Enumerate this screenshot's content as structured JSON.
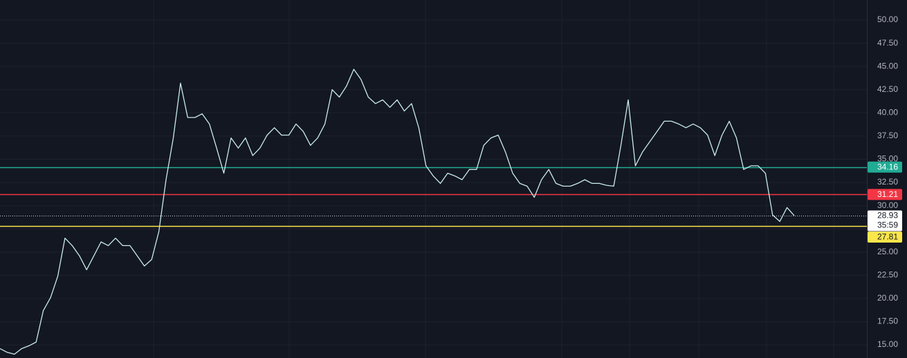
{
  "chart_data": {
    "type": "line",
    "color": "#c9ecea",
    "values": [
      14.6,
      14.2,
      14.0,
      14.6,
      14.9,
      15.3,
      18.7,
      20.1,
      22.4,
      26.5,
      25.7,
      24.6,
      23.1,
      24.6,
      26.1,
      25.7,
      26.5,
      25.7,
      25.7,
      24.6,
      23.5,
      24.2,
      27.2,
      32.8,
      37.3,
      43.2,
      39.5,
      39.5,
      39.9,
      38.8,
      36.2,
      33.5,
      37.3,
      36.2,
      37.3,
      35.4,
      36.2,
      37.6,
      38.4,
      37.6,
      37.6,
      38.8,
      38.0,
      36.5,
      37.3,
      38.8,
      42.5,
      41.7,
      42.9,
      44.7,
      43.6,
      41.7,
      41.0,
      41.4,
      40.6,
      41.4,
      40.2,
      41.0,
      38.4,
      34.3,
      33.2,
      32.4,
      33.5,
      33.2,
      32.8,
      33.9,
      33.9,
      36.5,
      37.3,
      37.6,
      35.8,
      33.5,
      32.4,
      32.1,
      30.9,
      32.8,
      33.9,
      32.4,
      32.1,
      32.1,
      32.4,
      32.8,
      32.4,
      32.4,
      32.2,
      32.1,
      36.5,
      41.4,
      34.3,
      35.8,
      36.9,
      38.0,
      39.1,
      39.1,
      38.8,
      38.4,
      38.8,
      38.4,
      37.6,
      35.4,
      37.6,
      39.1,
      37.3,
      33.9,
      34.3,
      34.3,
      33.5,
      29.0,
      28.3,
      29.8,
      28.93
    ],
    "ylim": [
      13.59,
      52.16
    ],
    "yticks": [
      {
        "value": 15,
        "label": "15.00"
      },
      {
        "value": 17.5,
        "label": "17.50"
      },
      {
        "value": 20,
        "label": "20.00"
      },
      {
        "value": 22.5,
        "label": "22.50"
      },
      {
        "value": 25,
        "label": "25.00"
      },
      {
        "value": 27.5,
        "label": "27.50"
      },
      {
        "value": 30,
        "label": "30.00"
      },
      {
        "value": 32.5,
        "label": "32.50"
      },
      {
        "value": 35,
        "label": "35.00"
      },
      {
        "value": 37.5,
        "label": "37.50"
      },
      {
        "value": 40,
        "label": "40.00"
      },
      {
        "value": 42.5,
        "label": "42.50"
      },
      {
        "value": 45,
        "label": "45.00"
      },
      {
        "value": 47.5,
        "label": "47.50"
      },
      {
        "value": 50,
        "label": "50.00"
      }
    ],
    "grid": true,
    "levels": [
      {
        "value": 34.16,
        "color": "#22ab94"
      },
      {
        "value": 31.21,
        "color": "#f23645"
      },
      {
        "value": 27.81,
        "color": "#fbe64c"
      }
    ],
    "last_price": {
      "value": 28.93,
      "countdown": "35:59"
    }
  }
}
